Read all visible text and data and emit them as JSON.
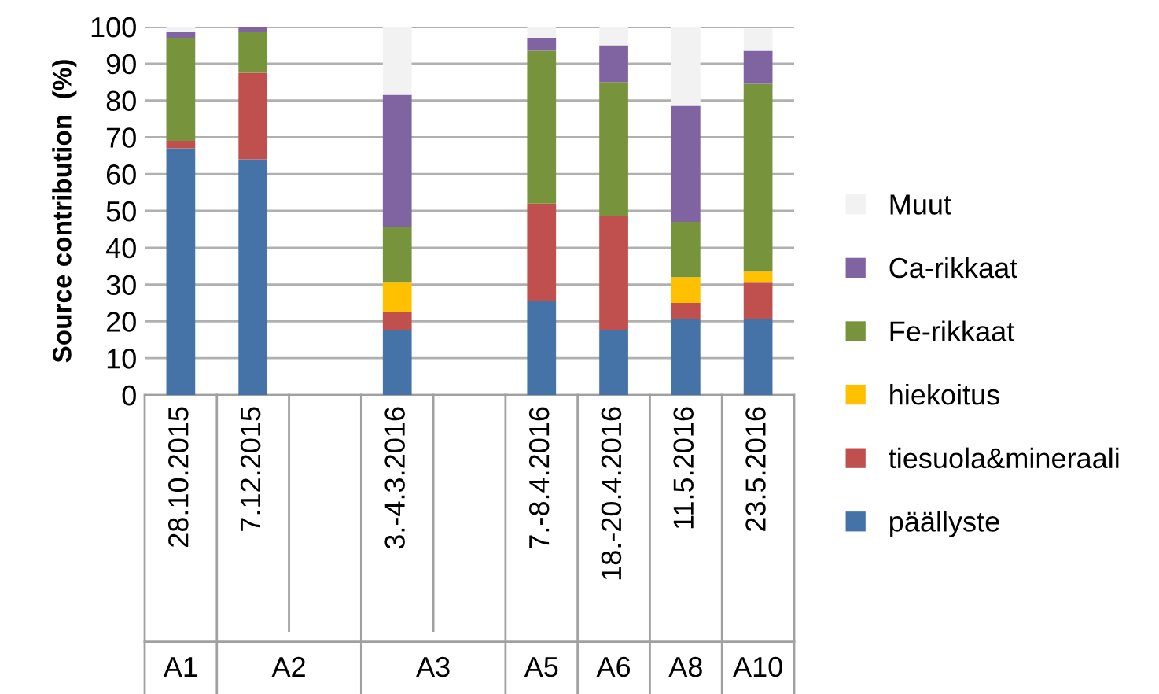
{
  "chart_data": {
    "type": "bar",
    "stacked": true,
    "ylabel": "Source contribution  (%)",
    "categories": [
      "28.10.2015",
      "7.12.2015",
      null,
      "3.-4.3.2016",
      null,
      "7.-8.4.2016",
      "18.-20.4.2016",
      "11.5.2016",
      "23.5.2016"
    ],
    "series": [
      {
        "name": "päällyste",
        "color": "#4572a7",
        "values": [
          67,
          64,
          0,
          17.5,
          0,
          25.5,
          17.5,
          20.5,
          20.5
        ]
      },
      {
        "name": "tiesuola&mineraali",
        "color": "#c0504d",
        "values": [
          2,
          23.5,
          0,
          5,
          0,
          26.5,
          31,
          4.5,
          10
        ]
      },
      {
        "name": "hiekoitus",
        "color": "#ffc000",
        "values": [
          0,
          0,
          0,
          8,
          0,
          0,
          0,
          7,
          3
        ]
      },
      {
        "name": "Fe-rikkaat",
        "color": "#77933c",
        "values": [
          28,
          11,
          0,
          15,
          0,
          41.5,
          36.5,
          15,
          51
        ]
      },
      {
        "name": "Ca-rikkaat",
        "color": "#8064a2",
        "values": [
          1.5,
          1.5,
          0,
          36,
          0,
          3.5,
          10,
          31.5,
          9
        ]
      },
      {
        "name": "Muut",
        "color": "#f2f2f2",
        "values": [
          1.5,
          0,
          0,
          18.5,
          0,
          3,
          5,
          21.5,
          6
        ]
      }
    ],
    "ylim": [
      0,
      100
    ],
    "yticks": [
      0,
      10,
      20,
      30,
      40,
      50,
      60,
      70,
      80,
      90,
      100
    ],
    "grid": "y",
    "legend": "right",
    "annotations": [
      "A1",
      "A2",
      "A3",
      "A5",
      "A6",
      "A8",
      "A10"
    ]
  }
}
